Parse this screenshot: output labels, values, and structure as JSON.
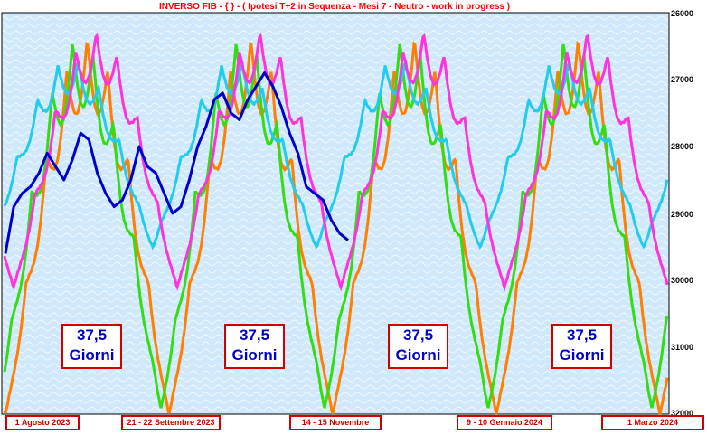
{
  "chart_data": {
    "type": "line",
    "title": "INVERSO FIB  - { } - ( Ipotesi  T+2 in Sequenza - Mesi  7 -  Neutro - work in progress )",
    "y_axis": {
      "ticks": [
        "26000",
        "27000",
        "28000",
        "29000",
        "30000",
        "31000",
        "32000"
      ],
      "inverted": true,
      "ylim": [
        26000,
        32000
      ]
    },
    "x_labels": [
      "1  Agosto  2023",
      "21 - 22  Settembre 2023",
      "14 - 15  Novembre",
      "9 - 10  Gennaio 2024",
      "1  Marzo  2024"
    ],
    "annotations": [
      {
        "line1": "37,5",
        "line2": "Giorni"
      },
      {
        "line1": "37,5",
        "line2": "Giorni"
      },
      {
        "line1": "37,5",
        "line2": "Giorni"
      },
      {
        "line1": "37,5",
        "line2": "Giorni"
      }
    ],
    "cycle_series": [
      {
        "color": "#ff7f00",
        "phase": 0.0,
        "min_value": 26400,
        "max_value": 32000
      },
      {
        "color": "#33dd11",
        "phase": 0.05,
        "min_value": 26400,
        "max_value": 31900
      },
      {
        "color": "#22ccee",
        "phase": 0.1,
        "min_value": 26700,
        "max_value": 29500
      },
      {
        "color": "#ff33dd",
        "phase": -0.05,
        "min_value": 26300,
        "max_value": 30100
      }
    ],
    "price_series": {
      "color": "#0000cc",
      "values": [
        29600,
        28900,
        28700,
        28600,
        28400,
        28100,
        28300,
        28500,
        28200,
        27800,
        27900,
        28400,
        28700,
        28900,
        28800,
        28500,
        28000,
        28300,
        28400,
        28700,
        29000,
        28900,
        28500,
        28000,
        27700,
        27300,
        27200,
        27500,
        27600,
        27300,
        27100,
        26900,
        27100,
        27400,
        27800,
        28100,
        28600,
        28700,
        28800,
        29100,
        29300,
        29400
      ]
    },
    "grid": false,
    "background": "#cfe8fb"
  }
}
